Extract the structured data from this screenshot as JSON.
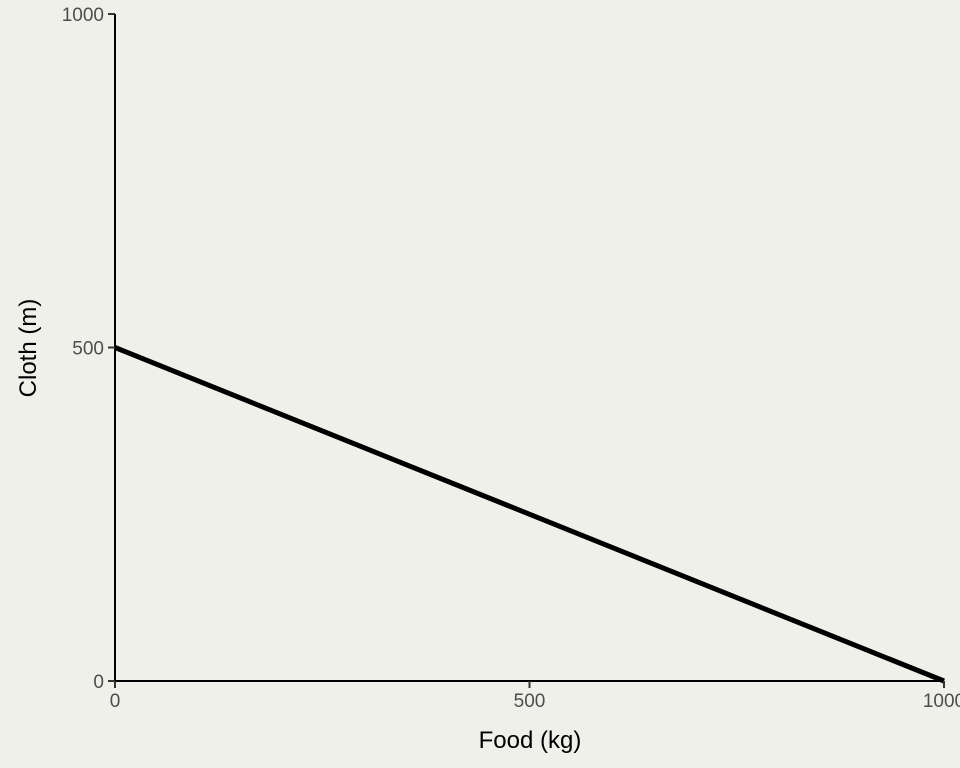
{
  "chart_data": {
    "type": "line",
    "xlabel": "Food (kg)",
    "ylabel": "Cloth (m)",
    "xlim": [
      0,
      1000
    ],
    "ylim": [
      0,
      1000
    ],
    "x_ticks": [
      "0",
      "500",
      "1000"
    ],
    "y_ticks": [
      "0",
      "500",
      "1000"
    ],
    "x_tick_values": [
      0,
      500,
      1000
    ],
    "y_tick_values": [
      0,
      500,
      1000
    ],
    "grid": false,
    "series": [
      {
        "x": [
          0,
          1000
        ],
        "y": [
          500,
          0
        ],
        "color": "#000000"
      }
    ],
    "background": "#f0f0eb"
  }
}
